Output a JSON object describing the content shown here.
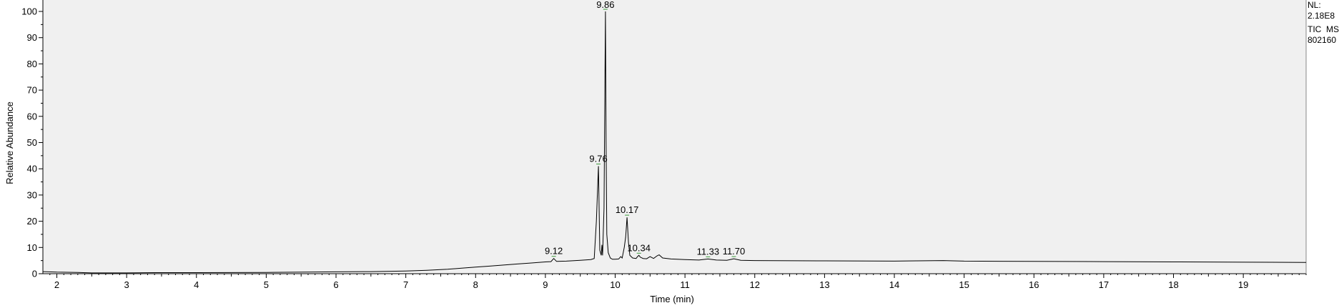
{
  "chart_data": {
    "type": "line",
    "title": "",
    "xlabel": "Time (min)",
    "ylabel": "Relative Abundance",
    "xlim": [
      1.8,
      19.9
    ],
    "ylim": [
      0,
      100
    ],
    "x_ticks": [
      2,
      3,
      4,
      5,
      6,
      7,
      8,
      9,
      10,
      11,
      12,
      13,
      14,
      15,
      16,
      17,
      18,
      19
    ],
    "y_ticks": [
      0,
      10,
      20,
      30,
      40,
      50,
      60,
      70,
      80,
      90,
      100
    ],
    "grid": false,
    "colors": {
      "plot_background": "#f0f0f0",
      "trace": "#000000",
      "peak_marker": "#3a9a3a"
    },
    "series": [
      {
        "x": [
          1.8,
          2.0,
          2.3,
          2.5,
          3.0,
          3.4,
          4.0,
          5.0,
          6.0,
          6.5,
          7.0,
          7.3,
          7.6,
          7.8,
          8.0,
          8.2,
          8.4,
          8.6,
          8.8,
          9.0,
          9.08,
          9.12,
          9.16,
          9.3,
          9.5,
          9.65,
          9.7,
          9.73,
          9.76,
          9.78,
          9.8,
          9.81,
          9.82,
          9.84,
          9.86,
          9.87,
          9.88,
          9.9,
          9.93,
          9.96,
          10.0,
          10.05,
          10.08,
          10.1,
          10.13,
          10.15,
          10.17,
          10.19,
          10.21,
          10.25,
          10.3,
          10.32,
          10.34,
          10.36,
          10.4,
          10.45,
          10.5,
          10.55,
          10.6,
          10.63,
          10.68,
          10.8,
          11.0,
          11.2,
          11.33,
          11.45,
          11.6,
          11.7,
          11.8,
          12.0,
          13.0,
          14.0,
          14.7,
          15.0,
          16.0,
          17.0,
          18.0,
          19.0,
          19.9
        ],
        "y": [
          0.8,
          0.6,
          0.5,
          0.3,
          0.3,
          0.4,
          0.4,
          0.5,
          0.7,
          0.8,
          1.0,
          1.3,
          1.7,
          2.1,
          2.5,
          2.9,
          3.3,
          3.7,
          4.1,
          4.5,
          4.6,
          5.8,
          4.7,
          4.8,
          5.1,
          5.4,
          5.8,
          20.0,
          41.0,
          9.0,
          7.0,
          11.0,
          7.0,
          25.0,
          100.0,
          50.0,
          15.0,
          8.0,
          6.0,
          5.5,
          5.5,
          5.6,
          6.5,
          6.0,
          10.0,
          14.0,
          21.5,
          12.0,
          7.0,
          6.0,
          5.8,
          6.5,
          7.0,
          6.3,
          5.8,
          5.7,
          6.5,
          5.8,
          6.8,
          7.2,
          6.0,
          5.6,
          5.4,
          5.2,
          5.6,
          5.2,
          5.1,
          5.7,
          5.1,
          5.0,
          4.9,
          4.8,
          5.0,
          4.8,
          4.7,
          4.6,
          4.5,
          4.4,
          4.3
        ]
      }
    ],
    "peak_labels": [
      {
        "x": 9.12,
        "y": 5.8,
        "text": "9.12"
      },
      {
        "x": 9.76,
        "y": 41.0,
        "text": "9.76"
      },
      {
        "x": 9.86,
        "y": 100.0,
        "text": "9.86"
      },
      {
        "x": 10.17,
        "y": 21.5,
        "text": "10.17"
      },
      {
        "x": 10.34,
        "y": 7.0,
        "text": "10.34"
      },
      {
        "x": 11.33,
        "y": 5.6,
        "text": "11.33"
      },
      {
        "x": 11.7,
        "y": 5.7,
        "text": "11.70"
      }
    ]
  },
  "side_info": {
    "line1": "NL:",
    "line2": "2.18E8",
    "line3": "TIC  MS",
    "line4": "802160"
  }
}
